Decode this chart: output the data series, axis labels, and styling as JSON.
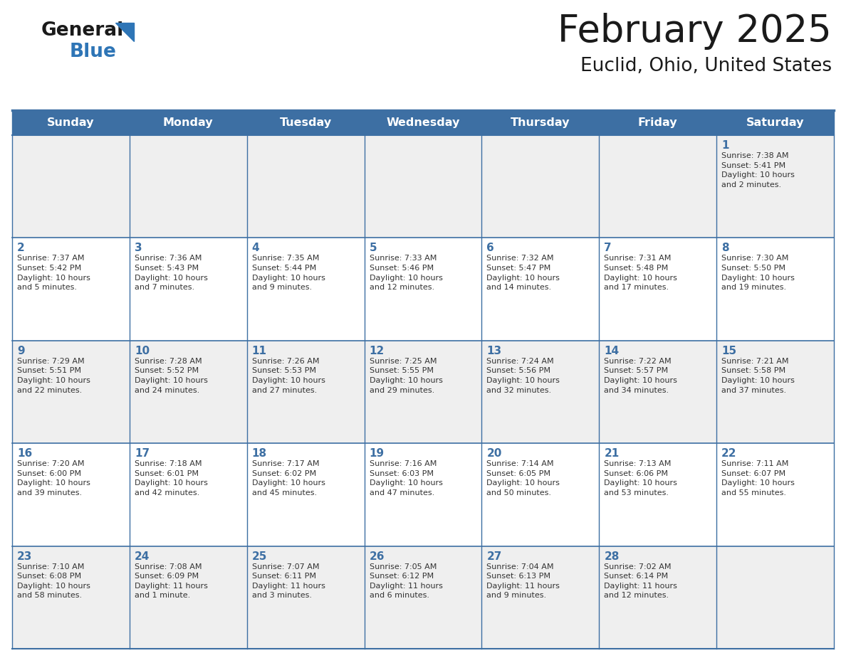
{
  "title": "February 2025",
  "subtitle": "Euclid, Ohio, United States",
  "header_bg": "#3d6fa3",
  "header_text_color": "#ffffff",
  "cell_bg_light": "#efefef",
  "cell_bg_white": "#ffffff",
  "border_color": "#3d6fa3",
  "day_headers": [
    "Sunday",
    "Monday",
    "Tuesday",
    "Wednesday",
    "Thursday",
    "Friday",
    "Saturday"
  ],
  "title_color": "#1a1a1a",
  "subtitle_color": "#1a1a1a",
  "day_number_color": "#3d6fa3",
  "cell_text_color": "#333333",
  "logo_text_color": "#1a1a1a",
  "logo_blue_color": "#2e75b6",
  "tri_color": "#2e75b6",
  "weeks": [
    [
      {
        "day": "",
        "info": ""
      },
      {
        "day": "",
        "info": ""
      },
      {
        "day": "",
        "info": ""
      },
      {
        "day": "",
        "info": ""
      },
      {
        "day": "",
        "info": ""
      },
      {
        "day": "",
        "info": ""
      },
      {
        "day": "1",
        "info": "Sunrise: 7:38 AM\nSunset: 5:41 PM\nDaylight: 10 hours\nand 2 minutes."
      }
    ],
    [
      {
        "day": "2",
        "info": "Sunrise: 7:37 AM\nSunset: 5:42 PM\nDaylight: 10 hours\nand 5 minutes."
      },
      {
        "day": "3",
        "info": "Sunrise: 7:36 AM\nSunset: 5:43 PM\nDaylight: 10 hours\nand 7 minutes."
      },
      {
        "day": "4",
        "info": "Sunrise: 7:35 AM\nSunset: 5:44 PM\nDaylight: 10 hours\nand 9 minutes."
      },
      {
        "day": "5",
        "info": "Sunrise: 7:33 AM\nSunset: 5:46 PM\nDaylight: 10 hours\nand 12 minutes."
      },
      {
        "day": "6",
        "info": "Sunrise: 7:32 AM\nSunset: 5:47 PM\nDaylight: 10 hours\nand 14 minutes."
      },
      {
        "day": "7",
        "info": "Sunrise: 7:31 AM\nSunset: 5:48 PM\nDaylight: 10 hours\nand 17 minutes."
      },
      {
        "day": "8",
        "info": "Sunrise: 7:30 AM\nSunset: 5:50 PM\nDaylight: 10 hours\nand 19 minutes."
      }
    ],
    [
      {
        "day": "9",
        "info": "Sunrise: 7:29 AM\nSunset: 5:51 PM\nDaylight: 10 hours\nand 22 minutes."
      },
      {
        "day": "10",
        "info": "Sunrise: 7:28 AM\nSunset: 5:52 PM\nDaylight: 10 hours\nand 24 minutes."
      },
      {
        "day": "11",
        "info": "Sunrise: 7:26 AM\nSunset: 5:53 PM\nDaylight: 10 hours\nand 27 minutes."
      },
      {
        "day": "12",
        "info": "Sunrise: 7:25 AM\nSunset: 5:55 PM\nDaylight: 10 hours\nand 29 minutes."
      },
      {
        "day": "13",
        "info": "Sunrise: 7:24 AM\nSunset: 5:56 PM\nDaylight: 10 hours\nand 32 minutes."
      },
      {
        "day": "14",
        "info": "Sunrise: 7:22 AM\nSunset: 5:57 PM\nDaylight: 10 hours\nand 34 minutes."
      },
      {
        "day": "15",
        "info": "Sunrise: 7:21 AM\nSunset: 5:58 PM\nDaylight: 10 hours\nand 37 minutes."
      }
    ],
    [
      {
        "day": "16",
        "info": "Sunrise: 7:20 AM\nSunset: 6:00 PM\nDaylight: 10 hours\nand 39 minutes."
      },
      {
        "day": "17",
        "info": "Sunrise: 7:18 AM\nSunset: 6:01 PM\nDaylight: 10 hours\nand 42 minutes."
      },
      {
        "day": "18",
        "info": "Sunrise: 7:17 AM\nSunset: 6:02 PM\nDaylight: 10 hours\nand 45 minutes."
      },
      {
        "day": "19",
        "info": "Sunrise: 7:16 AM\nSunset: 6:03 PM\nDaylight: 10 hours\nand 47 minutes."
      },
      {
        "day": "20",
        "info": "Sunrise: 7:14 AM\nSunset: 6:05 PM\nDaylight: 10 hours\nand 50 minutes."
      },
      {
        "day": "21",
        "info": "Sunrise: 7:13 AM\nSunset: 6:06 PM\nDaylight: 10 hours\nand 53 minutes."
      },
      {
        "day": "22",
        "info": "Sunrise: 7:11 AM\nSunset: 6:07 PM\nDaylight: 10 hours\nand 55 minutes."
      }
    ],
    [
      {
        "day": "23",
        "info": "Sunrise: 7:10 AM\nSunset: 6:08 PM\nDaylight: 10 hours\nand 58 minutes."
      },
      {
        "day": "24",
        "info": "Sunrise: 7:08 AM\nSunset: 6:09 PM\nDaylight: 11 hours\nand 1 minute."
      },
      {
        "day": "25",
        "info": "Sunrise: 7:07 AM\nSunset: 6:11 PM\nDaylight: 11 hours\nand 3 minutes."
      },
      {
        "day": "26",
        "info": "Sunrise: 7:05 AM\nSunset: 6:12 PM\nDaylight: 11 hours\nand 6 minutes."
      },
      {
        "day": "27",
        "info": "Sunrise: 7:04 AM\nSunset: 6:13 PM\nDaylight: 11 hours\nand 9 minutes."
      },
      {
        "day": "28",
        "info": "Sunrise: 7:02 AM\nSunset: 6:14 PM\nDaylight: 11 hours\nand 12 minutes."
      },
      {
        "day": "",
        "info": ""
      }
    ]
  ],
  "row_bg_colors": [
    "#efefef",
    "#ffffff",
    "#efefef",
    "#ffffff",
    "#efefef"
  ]
}
